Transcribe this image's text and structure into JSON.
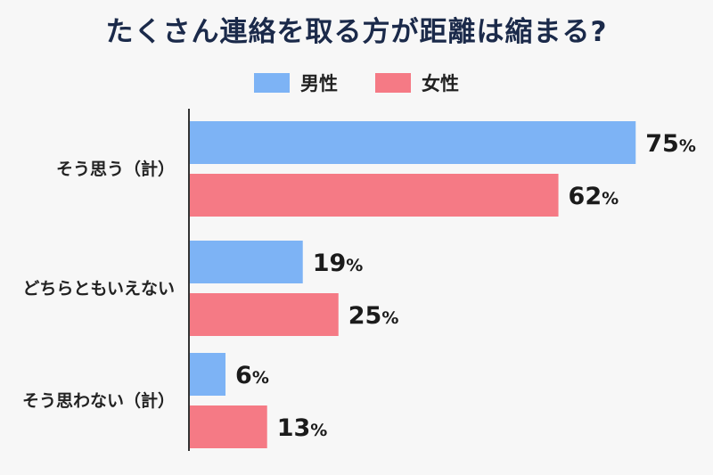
{
  "chart_data": {
    "type": "bar",
    "orientation": "horizontal",
    "title": "たくさん連絡を取る方が距離は縮まる?",
    "categories": [
      "そう思う（計）",
      "どちらともいえない",
      "そう思わない（計）"
    ],
    "series": [
      {
        "name": "男性",
        "color": "#7db3f5",
        "values": [
          75,
          19,
          6
        ]
      },
      {
        "name": "女性",
        "color": "#f57a85",
        "values": [
          62,
          25,
          13
        ]
      }
    ],
    "unit": "%",
    "xlim": [
      0,
      80
    ],
    "grid": false,
    "legend_position": "top-center"
  }
}
